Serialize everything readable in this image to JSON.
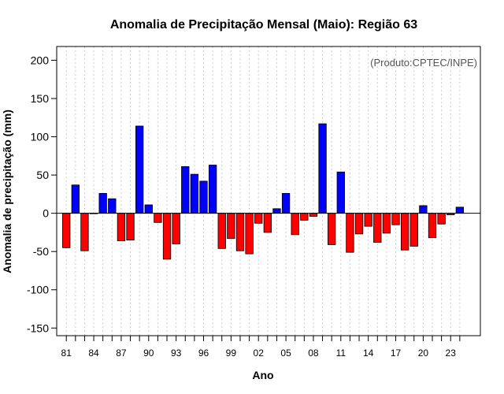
{
  "chart_data": {
    "type": "bar",
    "title": "Anomalia de Precipitação Mensal (Maio): Região 63",
    "xlabel": "Ano",
    "ylabel": "Anomalia de precipitação (mm)",
    "source_note": "(Produto:CPTEC/INPE)",
    "ylim": [
      -160,
      218
    ],
    "yticks": [
      -150,
      -100,
      -50,
      0,
      50,
      100,
      150,
      200
    ],
    "ytick_labels": [
      "-150",
      "-100",
      "-50",
      "0",
      "50",
      "100",
      "150",
      "200"
    ],
    "xtick_labels": [
      "81",
      "84",
      "87",
      "90",
      "93",
      "96",
      "99",
      "02",
      "05",
      "08",
      "11",
      "14",
      "17",
      "20",
      "23"
    ],
    "xtick_every": 3,
    "grid": true,
    "categories": [
      "1981",
      "1982",
      "1983",
      "1984",
      "1985",
      "1986",
      "1987",
      "1988",
      "1989",
      "1990",
      "1991",
      "1992",
      "1993",
      "1994",
      "1995",
      "1996",
      "1997",
      "1998",
      "1999",
      "2000",
      "2001",
      "2002",
      "2003",
      "2004",
      "2005",
      "2006",
      "2007",
      "2008",
      "2009",
      "2010",
      "2011",
      "2012",
      "2013",
      "2014",
      "2015",
      "2016",
      "2017",
      "2018",
      "2019",
      "2020",
      "2021",
      "2022",
      "2023",
      "2024"
    ],
    "values": [
      -45,
      37,
      -49,
      0,
      26,
      19,
      -36,
      -35,
      114,
      11,
      -12,
      -60,
      -40,
      61,
      51,
      42,
      63,
      -46,
      -33,
      -49,
      -53,
      -13,
      -25,
      6,
      26,
      -28,
      -9,
      -4,
      117,
      -41,
      54,
      -51,
      -27,
      -17,
      -38,
      -26,
      -15,
      -48,
      -43,
      10,
      -32,
      -14,
      -2,
      8
    ],
    "positive_color": "#0000ff",
    "negative_color": "#ff0000",
    "zero_line_color": "#000000",
    "grid_color": "#cccccc"
  }
}
